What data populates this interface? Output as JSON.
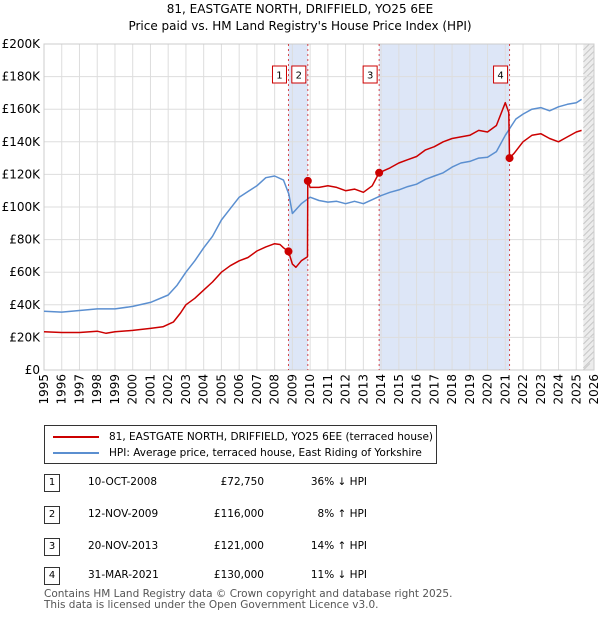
{
  "title_line1": "81, EASTGATE NORTH, DRIFFIELD, YO25 6EE",
  "title_line2": "Price paid vs. HM Land Registry's House Price Index (HPI)",
  "colors": {
    "property": "#cc0000",
    "hpi": "#5b8fd0",
    "shade": "#dde6f7",
    "sale_line": "#cc0000"
  },
  "chart_data": {
    "type": "line",
    "title": "Price paid vs. HM Land Registry's House Price Index (HPI)",
    "xlabel": "",
    "ylabel": "",
    "xlim": [
      1995,
      2026
    ],
    "ylim": [
      0,
      200000
    ],
    "x_ticks": [
      "1995",
      "1996",
      "1997",
      "1998",
      "1999",
      "2000",
      "2001",
      "2002",
      "2003",
      "2004",
      "2005",
      "2006",
      "2007",
      "2008",
      "2009",
      "2010",
      "2011",
      "2012",
      "2013",
      "2014",
      "2015",
      "2016",
      "2017",
      "2018",
      "2019",
      "2020",
      "2021",
      "2022",
      "2023",
      "2024",
      "2025",
      "2026"
    ],
    "y_ticks": [
      {
        "value": 0,
        "label": "£0"
      },
      {
        "value": 20000,
        "label": "£20K"
      },
      {
        "value": 40000,
        "label": "£40K"
      },
      {
        "value": 60000,
        "label": "£60K"
      },
      {
        "value": 80000,
        "label": "£80K"
      },
      {
        "value": 100000,
        "label": "£100K"
      },
      {
        "value": 120000,
        "label": "£120K"
      },
      {
        "value": 140000,
        "label": "£140K"
      },
      {
        "value": 160000,
        "label": "£160K"
      },
      {
        "value": 180000,
        "label": "£180K"
      },
      {
        "value": 200000,
        "label": "£200K"
      }
    ],
    "grid": true,
    "series": [
      {
        "name": "81, EASTGATE NORTH, DRIFFIELD, YO25 6EE (terraced house)",
        "color": "#cc0000",
        "x": [
          1995,
          1996,
          1997,
          1998,
          1998.5,
          1999,
          2000,
          2001,
          2001.7,
          2002.3,
          2002.7,
          2003,
          2003.5,
          2004,
          2004.5,
          2005,
          2005.5,
          2006,
          2006.5,
          2007,
          2007.5,
          2008,
          2008.3,
          2008.5,
          2008.78,
          2009.0,
          2009.2,
          2009.5,
          2009.85,
          2009.87,
          2010,
          2010.5,
          2011,
          2011.5,
          2012,
          2012.5,
          2013,
          2013.5,
          2013.89,
          2014.5,
          2015,
          2015.5,
          2016,
          2016.5,
          2017,
          2017.5,
          2018,
          2018.5,
          2019,
          2019.5,
          2020,
          2020.5,
          2021.0,
          2021.2,
          2021.24,
          2021.5,
          2022,
          2022.5,
          2023,
          2023.5,
          2024,
          2024.5,
          2025,
          2025.3
        ],
        "values": [
          23500,
          23000,
          23000,
          23800,
          22500,
          23500,
          24300,
          25500,
          26500,
          29500,
          35000,
          40000,
          44000,
          49000,
          54000,
          60000,
          64000,
          67000,
          69000,
          73000,
          75500,
          77500,
          77000,
          75000,
          72750,
          65000,
          63000,
          67000,
          69500,
          116000,
          112000,
          112000,
          113000,
          112000,
          110000,
          111000,
          109000,
          113000,
          121000,
          124000,
          127000,
          129000,
          131000,
          135000,
          137000,
          140000,
          142000,
          143000,
          144000,
          147000,
          146000,
          150000,
          164000,
          158000,
          130000,
          133000,
          140000,
          144000,
          145000,
          142000,
          140000,
          143000,
          146000,
          147000
        ]
      },
      {
        "name": "HPI: Average price, terraced house, East Riding of Yorkshire",
        "color": "#5b8fd0",
        "x": [
          1995,
          1996,
          1997,
          1998,
          1999,
          2000,
          2001,
          2002,
          2002.5,
          2003,
          2003.5,
          2004,
          2004.5,
          2005,
          2005.5,
          2006,
          2006.5,
          2007,
          2007.5,
          2008,
          2008.5,
          2008.8,
          2009.0,
          2009.5,
          2010,
          2010.5,
          2011,
          2011.5,
          2012,
          2012.5,
          2013,
          2013.5,
          2014,
          2014.5,
          2015,
          2015.5,
          2016,
          2016.5,
          2017,
          2017.5,
          2018,
          2018.5,
          2019,
          2019.5,
          2020,
          2020.5,
          2021,
          2021.3,
          2021.6,
          2022,
          2022.5,
          2023,
          2023.5,
          2024,
          2024.5,
          2025,
          2025.3
        ],
        "values": [
          36000,
          35500,
          36500,
          37500,
          37500,
          39000,
          41500,
          46000,
          52000,
          60000,
          67000,
          75000,
          82000,
          92000,
          99000,
          106000,
          109500,
          113000,
          118000,
          119000,
          116500,
          108000,
          96000,
          102000,
          106000,
          104000,
          103000,
          103500,
          102000,
          103500,
          102000,
          104500,
          107000,
          109000,
          110500,
          112500,
          114000,
          117000,
          119000,
          121000,
          124500,
          127000,
          128000,
          130000,
          130500,
          134000,
          144000,
          149000,
          154000,
          157000,
          160000,
          161000,
          159000,
          161500,
          163000,
          164000,
          166000
        ]
      }
    ],
    "sales": [
      {
        "label": "1",
        "year": 2008.78,
        "price": 72750
      },
      {
        "label": "2",
        "year": 2009.87,
        "price": 116000
      },
      {
        "label": "3",
        "year": 2013.89,
        "price": 121000
      },
      {
        "label": "4",
        "year": 2021.24,
        "price": 130000
      }
    ],
    "shaded_ranges": [
      [
        2008.78,
        2009.87
      ],
      [
        2013.89,
        2021.24
      ]
    ],
    "future_from": 2025.4
  },
  "legend": {
    "property": "81, EASTGATE NORTH, DRIFFIELD, YO25 6EE (terraced house)",
    "hpi": "HPI: Average price, terraced house, East Riding of Yorkshire"
  },
  "transactions": [
    {
      "num": "1",
      "date": "10-OCT-2008",
      "price": "£72,750",
      "hpi": "36% ↓ HPI"
    },
    {
      "num": "2",
      "date": "12-NOV-2009",
      "price": "£116,000",
      "hpi": "8% ↑ HPI"
    },
    {
      "num": "3",
      "date": "20-NOV-2013",
      "price": "£121,000",
      "hpi": "14% ↑ HPI"
    },
    {
      "num": "4",
      "date": "31-MAR-2021",
      "price": "£130,000",
      "hpi": "11% ↓ HPI"
    }
  ],
  "footer_line1": "Contains HM Land Registry data © Crown copyright and database right 2025.",
  "footer_line2": "This data is licensed under the Open Government Licence v3.0."
}
